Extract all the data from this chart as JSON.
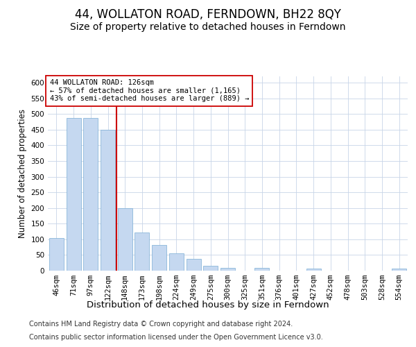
{
  "title1": "44, WOLLATON ROAD, FERNDOWN, BH22 8QY",
  "title2": "Size of property relative to detached houses in Ferndown",
  "xlabel": "Distribution of detached houses by size in Ferndown",
  "ylabel": "Number of detached properties",
  "categories": [
    "46sqm",
    "71sqm",
    "97sqm",
    "122sqm",
    "148sqm",
    "173sqm",
    "198sqm",
    "224sqm",
    "249sqm",
    "275sqm",
    "300sqm",
    "325sqm",
    "351sqm",
    "376sqm",
    "401sqm",
    "427sqm",
    "452sqm",
    "478sqm",
    "503sqm",
    "528sqm",
    "554sqm"
  ],
  "values": [
    105,
    487,
    487,
    450,
    200,
    122,
    82,
    55,
    37,
    15,
    9,
    0,
    9,
    0,
    0,
    6,
    0,
    0,
    0,
    0,
    6
  ],
  "bar_color": "#c5d8f0",
  "bar_edge_color": "#7aadd4",
  "vline_x": 3.5,
  "vline_color": "#cc0000",
  "annotation_line1": "44 WOLLATON ROAD: 126sqm",
  "annotation_line2": "← 57% of detached houses are smaller (1,165)",
  "annotation_line3": "43% of semi-detached houses are larger (889) →",
  "annotation_box_color": "#ffffff",
  "annotation_box_edge": "#cc0000",
  "ylim": [
    0,
    620
  ],
  "yticks": [
    0,
    50,
    100,
    150,
    200,
    250,
    300,
    350,
    400,
    450,
    500,
    550,
    600
  ],
  "footer_line1": "Contains HM Land Registry data © Crown copyright and database right 2024.",
  "footer_line2": "Contains public sector information licensed under the Open Government Licence v3.0.",
  "background_color": "#ffffff",
  "grid_color": "#c8d4e8",
  "title1_fontsize": 12,
  "title2_fontsize": 10,
  "xlabel_fontsize": 9.5,
  "ylabel_fontsize": 8.5,
  "tick_fontsize": 7.5,
  "annotation_fontsize": 7.5,
  "footer_fontsize": 7
}
